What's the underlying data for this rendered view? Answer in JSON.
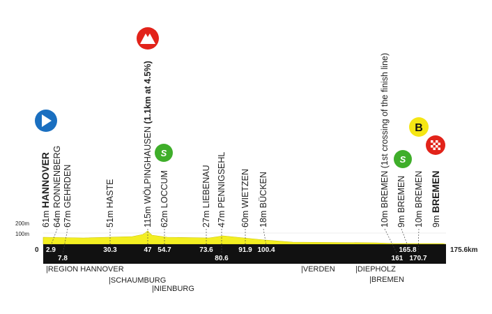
{
  "scale": {
    "top": "200m",
    "mid": "100m",
    "zero": "0",
    "end": "175.6km"
  },
  "waypoints": [
    {
      "alt": "61m",
      "name": "HANNOVER"
    },
    {
      "alt": "64m",
      "name": "RONNENBERG",
      "km": "2.9"
    },
    {
      "alt": "67m",
      "name": "GEHRDEN",
      "km": "7.8"
    },
    {
      "alt": "51m",
      "name": "HASTE",
      "km": "30.3"
    },
    {
      "alt": "115m",
      "name": "WÖLPINGHAUSEN",
      "note": "(1.1km at 4.5%)",
      "km": "47"
    },
    {
      "alt": "62m",
      "name": "LOCCUM",
      "km": "54.7"
    },
    {
      "alt": "27m",
      "name": "LIEBENAU",
      "km": "73.6"
    },
    {
      "alt": "47m",
      "name": "PENNIGSEHL",
      "km": "80.6"
    },
    {
      "alt": "60m",
      "name": "WIETZEN",
      "km": "91.9"
    },
    {
      "alt": "18m",
      "name": "BÜCKEN",
      "km": "100.4"
    },
    {
      "alt": "10m",
      "name": "BREMEN",
      "note": "(1st crossing of the finish line)",
      "km": "161"
    },
    {
      "alt": "9m",
      "name": "BREMEN",
      "km": "165.8"
    },
    {
      "alt": "10m",
      "name": "BREMEN",
      "km": "170.7"
    },
    {
      "alt": "9m",
      "name": "BREMEN"
    }
  ],
  "regions": [
    "|REGION HANNOVER",
    "|SCHAUMBURG",
    "|NIENBURG",
    "|VERDEN",
    "|DIEPHOLZ",
    "|BREMEN"
  ],
  "icons": {
    "sprint": "S",
    "bonus": "B"
  }
}
